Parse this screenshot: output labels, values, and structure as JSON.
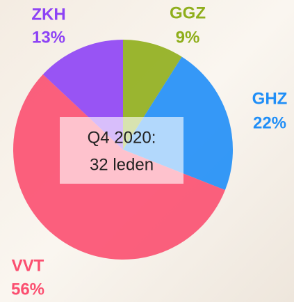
{
  "chart_data": {
    "type": "pie",
    "categories": [
      "GGZ",
      "GHZ",
      "VVT",
      "ZKH"
    ],
    "values": [
      9,
      22,
      56,
      13
    ],
    "value_labels": [
      "9%",
      "22%",
      "56%",
      "13%"
    ],
    "colors": [
      "#8fae1b",
      "#1f8ef7",
      "#fb4f70",
      "#8d42f5"
    ],
    "annotation": [
      "Q4 2020:",
      "32 leden"
    ]
  }
}
